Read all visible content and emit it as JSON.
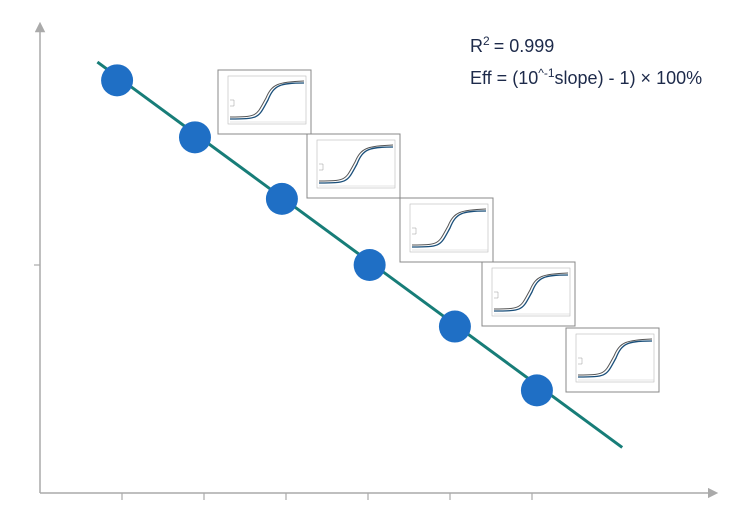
{
  "chart_data": {
    "type": "scatter",
    "x": [
      0.94,
      1.89,
      2.95,
      4.02,
      5.06,
      6.06
    ],
    "values": [
      1.81,
      1.56,
      1.29,
      1.0,
      0.73,
      0.45
    ],
    "color": "#1f6fc5",
    "xlim": [
      0,
      8.23
    ],
    "ylim": [
      0,
      2.05
    ],
    "xticks": [
      1,
      2,
      3,
      4,
      5,
      6
    ],
    "yticks": [
      1
    ],
    "fit_line": {
      "x": [
        0.7,
        7.1
      ],
      "y": [
        1.89,
        0.2
      ],
      "color": "#177d78"
    },
    "annotations": {
      "r2_base": "R",
      "r2_sup": "2",
      "r2_rest": "= 0.999",
      "eff_base": "Eff = (10",
      "eff_sup": "^-1",
      "eff_rest": "slope) - 1) × 100%"
    }
  }
}
